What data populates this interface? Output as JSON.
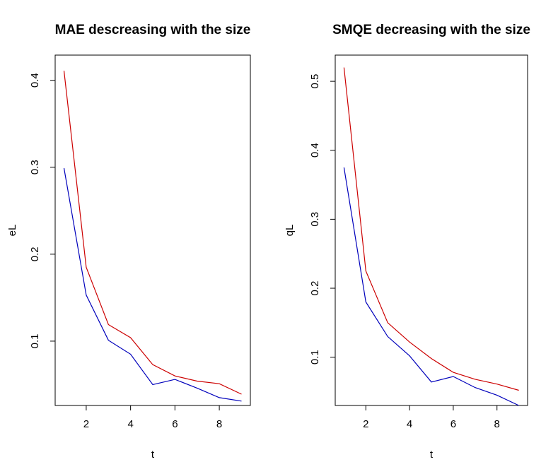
{
  "chart_data": [
    {
      "type": "line",
      "title": "MAE descreasing with the size",
      "xlabel": "t",
      "ylabel": "eL",
      "x": [
        1,
        2,
        3,
        4,
        5,
        6,
        7,
        8,
        9
      ],
      "xlim": [
        0.6,
        9.4
      ],
      "ylim": [
        0.026,
        0.429
      ],
      "xticks": [
        2,
        4,
        6,
        8
      ],
      "yticks": [
        0.1,
        0.2,
        0.3,
        0.4
      ],
      "series": [
        {
          "name": "red",
          "color": "#cc0000",
          "values": [
            0.411,
            0.185,
            0.119,
            0.104,
            0.073,
            0.06,
            0.054,
            0.051,
            0.039
          ]
        },
        {
          "name": "blue",
          "color": "#0000bb",
          "values": [
            0.299,
            0.153,
            0.101,
            0.085,
            0.05,
            0.056,
            0.046,
            0.035,
            0.031
          ]
        }
      ]
    },
    {
      "type": "line",
      "title": "SMQE decreasing with the size",
      "xlabel": "t",
      "ylabel": "qL",
      "x": [
        1,
        2,
        3,
        4,
        5,
        6,
        7,
        8,
        9
      ],
      "xlim": [
        0.6,
        9.4
      ],
      "ylim": [
        0.03,
        0.538
      ],
      "xticks": [
        2,
        4,
        6,
        8
      ],
      "yticks": [
        0.1,
        0.2,
        0.3,
        0.4,
        0.5
      ],
      "series": [
        {
          "name": "red",
          "color": "#cc0000",
          "values": [
            0.52,
            0.225,
            0.15,
            0.122,
            0.098,
            0.078,
            0.068,
            0.061,
            0.052
          ]
        },
        {
          "name": "blue",
          "color": "#0000bb",
          "values": [
            0.375,
            0.18,
            0.13,
            0.102,
            0.064,
            0.072,
            0.056,
            0.045,
            0.03
          ]
        }
      ]
    }
  ]
}
